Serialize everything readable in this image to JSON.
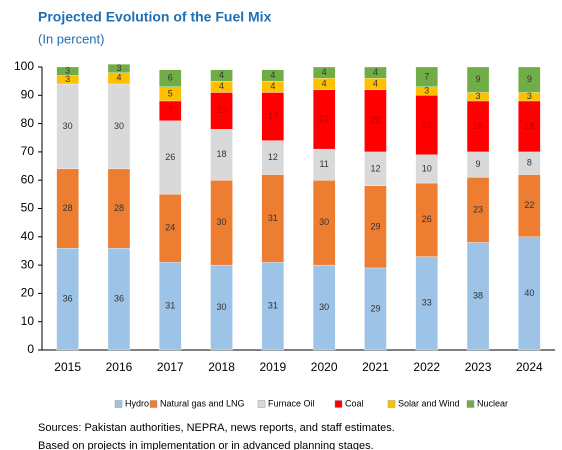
{
  "chart_data": {
    "type": "stacked_bar",
    "title": "Projected Evolution of the Fuel Mix",
    "subtitle": "(In percent)",
    "categories": [
      "2015",
      "2016",
      "2017",
      "2018",
      "2019",
      "2020",
      "2021",
      "2022",
      "2023",
      "2024"
    ],
    "series": [
      {
        "name": "Hydro",
        "color": "#9dc3e6",
        "values": [
          36,
          36,
          31,
          30,
          31,
          30,
          29,
          33,
          38,
          40
        ]
      },
      {
        "name": "Natural gas and LNG",
        "color": "#ed7d31",
        "values": [
          28,
          28,
          24,
          30,
          31,
          30,
          29,
          26,
          23,
          22
        ]
      },
      {
        "name": "Furnace Oil",
        "color": "#d9d9d9",
        "values": [
          30,
          30,
          26,
          18,
          12,
          11,
          12,
          10,
          9,
          8
        ]
      },
      {
        "name": "Coal",
        "color": "#ff0000",
        "values": [
          0,
          0,
          7,
          13,
          17,
          21,
          22,
          21,
          18,
          18
        ]
      },
      {
        "name": "Solar and Wind",
        "color": "#ffc000",
        "values": [
          3,
          4,
          5,
          4,
          4,
          4,
          4,
          3,
          3,
          3
        ]
      },
      {
        "name": "Nuclear",
        "color": "#70ad47",
        "values": [
          3,
          3,
          6,
          4,
          4,
          4,
          4,
          7,
          9,
          9
        ]
      }
    ],
    "ylim": [
      0,
      100
    ],
    "yticks": [
      0,
      10,
      20,
      30,
      40,
      50,
      60,
      70,
      80,
      90,
      100
    ],
    "grid": false,
    "legend": "bottom",
    "notes": [
      "Sources: Pakistan authorities, NEPRA, news reports, and staff estimates.",
      "Based on projects in implementation or in advanced planning stages."
    ]
  }
}
